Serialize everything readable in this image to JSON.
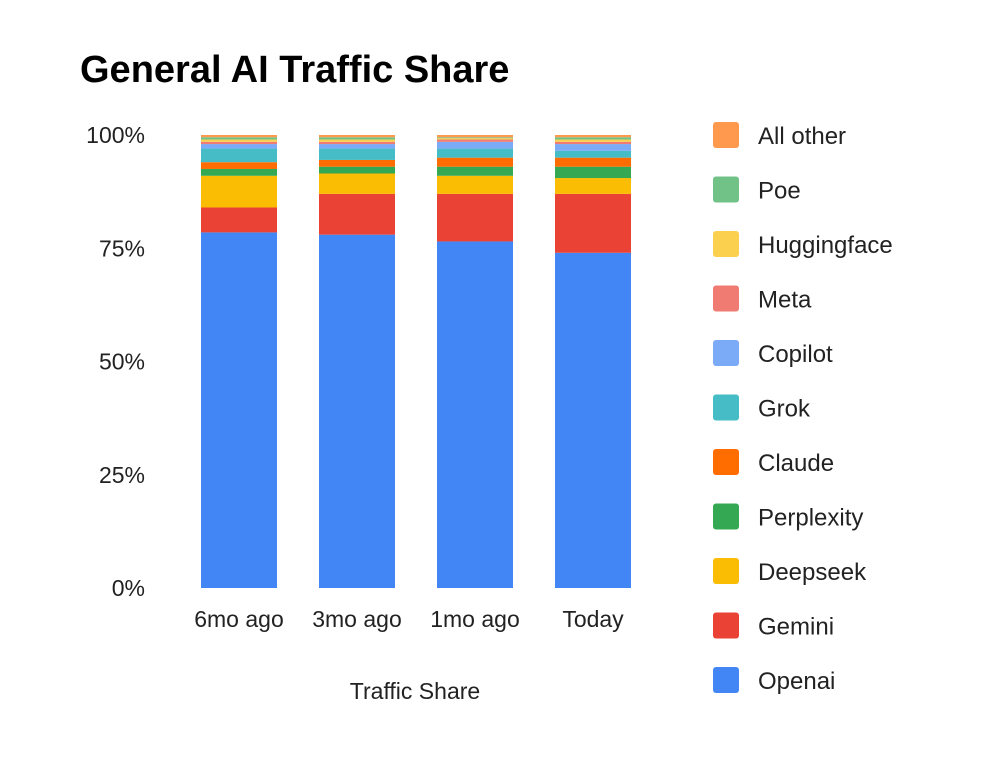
{
  "chart_data": {
    "type": "bar",
    "stacked": true,
    "title": "General AI Traffic Share",
    "xlabel": "Traffic Share",
    "ylabel": "",
    "ylim": [
      0,
      100
    ],
    "yticks": [
      "0%",
      "25%",
      "50%",
      "75%",
      "100%"
    ],
    "categories": [
      "6mo ago",
      "3mo ago",
      "1mo ago",
      "Today"
    ],
    "legend_position": "right",
    "grid": false,
    "series": [
      {
        "name": "Openai",
        "color": "#4285F4",
        "values": [
          78.5,
          78.0,
          76.5,
          74.0
        ]
      },
      {
        "name": "Gemini",
        "color": "#EA4335",
        "values": [
          5.5,
          9.0,
          10.5,
          13.0
        ]
      },
      {
        "name": "Deepseek",
        "color": "#FBBC04",
        "values": [
          7.0,
          4.5,
          4.0,
          3.5
        ]
      },
      {
        "name": "Perplexity",
        "color": "#34A853",
        "values": [
          1.5,
          1.5,
          2.0,
          2.5
        ]
      },
      {
        "name": "Claude",
        "color": "#FF6D01",
        "values": [
          1.5,
          1.5,
          2.0,
          2.0
        ]
      },
      {
        "name": "Grok",
        "color": "#46BDC6",
        "values": [
          3.0,
          2.5,
          2.0,
          1.5
        ]
      },
      {
        "name": "Copilot",
        "color": "#7BAAF7",
        "values": [
          1.0,
          1.0,
          1.5,
          1.5
        ]
      },
      {
        "name": "Meta",
        "color": "#F07B72",
        "values": [
          0.5,
          0.5,
          0.5,
          0.5
        ]
      },
      {
        "name": "Huggingface",
        "color": "#FCD04F",
        "values": [
          0.5,
          0.5,
          0.3,
          0.5
        ]
      },
      {
        "name": "Poe",
        "color": "#71C287",
        "values": [
          0.5,
          0.5,
          0.2,
          0.5
        ]
      },
      {
        "name": "All other",
        "color": "#FF994D",
        "values": [
          0.5,
          0.5,
          0.5,
          0.5
        ]
      }
    ]
  }
}
